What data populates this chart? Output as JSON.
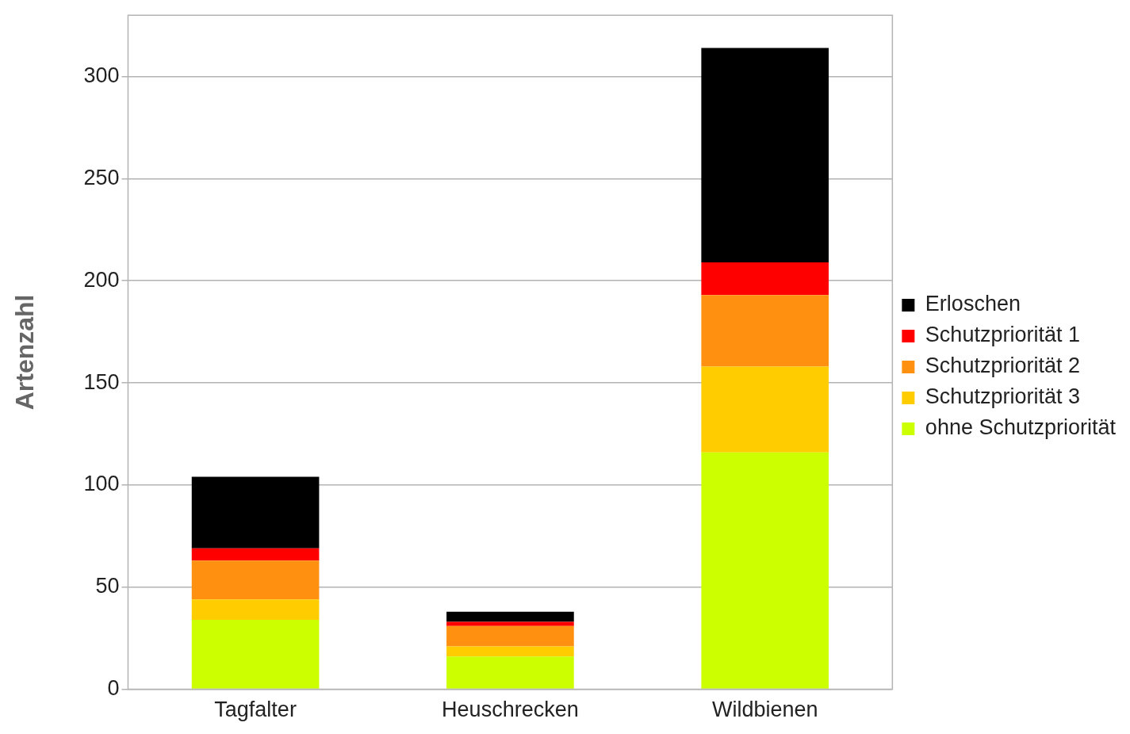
{
  "chart_data": {
    "type": "bar",
    "ylabel": "Artenzahl",
    "categories": [
      "Tagfalter",
      "Heuschrecken",
      "Wildbienen"
    ],
    "stacked": true,
    "series": [
      {
        "name": "ohne Schutzpriorität",
        "color": "#ccff00",
        "values": [
          34,
          16,
          116
        ]
      },
      {
        "name": "Schutzpriorität 3",
        "color": "#ffcc00",
        "values": [
          10,
          5,
          42
        ]
      },
      {
        "name": "Schutzpriorität 2",
        "color": "#ff9010",
        "values": [
          19,
          10,
          35
        ]
      },
      {
        "name": "Schutzpriorität 1",
        "color": "#ff0000",
        "values": [
          6,
          2,
          16
        ]
      },
      {
        "name": "Erloschen",
        "color": "#000000",
        "values": [
          35,
          5,
          105
        ]
      }
    ],
    "ylim": [
      0,
      330
    ],
    "yticks": [
      0,
      50,
      100,
      150,
      200,
      250,
      300
    ],
    "grid": "y",
    "legend": "right"
  }
}
